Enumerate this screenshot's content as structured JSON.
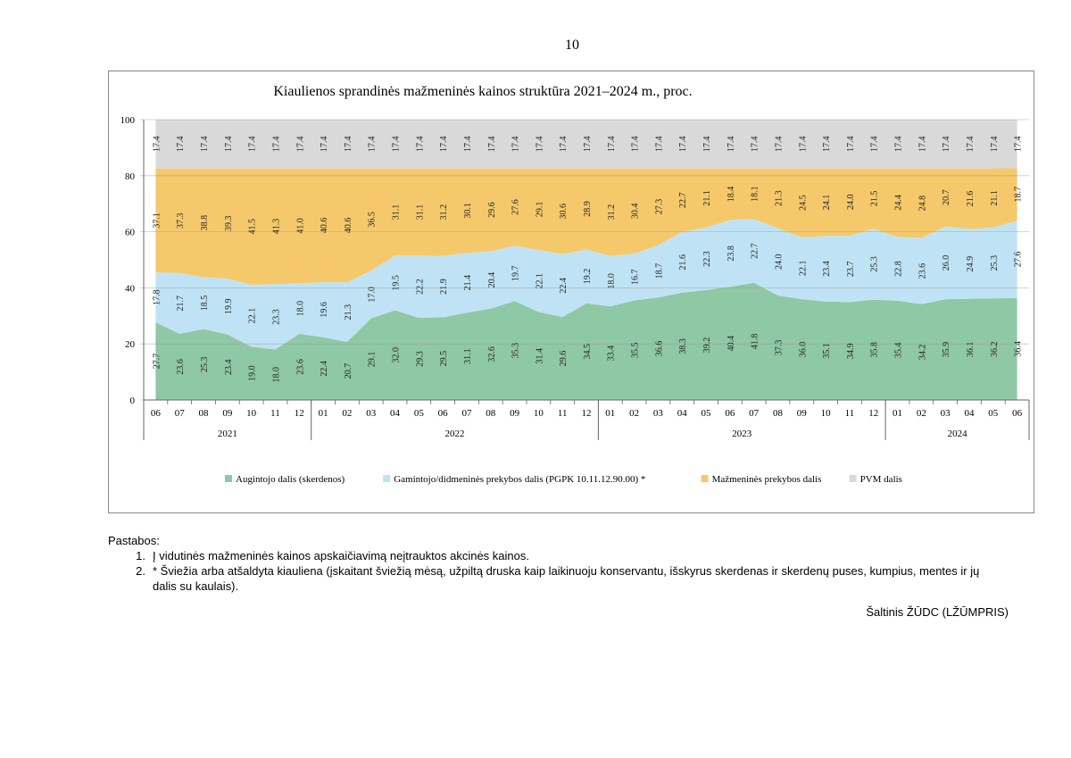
{
  "page_number": "10",
  "chart_data": {
    "type": "area",
    "stacked": true,
    "title": "Kiaulienos sprandinės mažmeninės  kainos struktūra 2021–2024 m., proc.",
    "ylim": [
      0,
      100
    ],
    "yticks": [
      "0",
      "20",
      "40",
      "60",
      "80",
      "100"
    ],
    "grid": true,
    "legend_position": "bottom",
    "categories": [
      "06",
      "07",
      "08",
      "09",
      "10",
      "11",
      "12",
      "01",
      "02",
      "03",
      "04",
      "05",
      "06",
      "07",
      "08",
      "09",
      "10",
      "11",
      "12",
      "01",
      "02",
      "03",
      "04",
      "05",
      "06",
      "07",
      "08",
      "09",
      "10",
      "11",
      "12",
      "01",
      "02",
      "03",
      "04",
      "05",
      "06"
    ],
    "years": [
      {
        "label": "2021",
        "start": 0,
        "end": 6
      },
      {
        "label": "2022",
        "start": 7,
        "end": 18
      },
      {
        "label": "2023",
        "start": 19,
        "end": 30
      },
      {
        "label": "2024",
        "start": 31,
        "end": 36
      }
    ],
    "series": [
      {
        "name": "Augintojo dalis (skerdenos)",
        "color": "#8fc8a4",
        "values": [
          27.7,
          23.6,
          25.3,
          23.4,
          19.0,
          18.0,
          23.6,
          22.4,
          20.7,
          29.1,
          32.0,
          29.3,
          29.5,
          31.1,
          32.6,
          35.3,
          31.4,
          29.6,
          34.5,
          33.4,
          35.5,
          36.6,
          38.3,
          39.2,
          40.4,
          41.8,
          37.3,
          36.0,
          35.1,
          34.9,
          35.8,
          35.4,
          34.2,
          35.9,
          36.1,
          36.2,
          36.4
        ]
      },
      {
        "name": "Gamintojo/didmeninės prekybos dalis (PGPK 10.11.12.90.00) *",
        "color": "#bfe3f5",
        "values": [
          17.8,
          21.7,
          18.5,
          19.9,
          22.1,
          23.3,
          18.0,
          19.6,
          21.3,
          17.0,
          19.5,
          22.2,
          21.9,
          21.4,
          20.4,
          19.7,
          22.1,
          22.4,
          19.2,
          18.0,
          16.7,
          18.7,
          21.6,
          22.3,
          23.8,
          22.7,
          24.0,
          22.1,
          23.4,
          23.7,
          25.3,
          22.8,
          23.6,
          26.0,
          24.9,
          25.3,
          27.6
        ]
      },
      {
        "name": "Mažmeninės prekybos dalis",
        "color": "#f5c96b",
        "values": [
          37.1,
          37.3,
          38.8,
          39.3,
          41.5,
          41.3,
          41.0,
          40.6,
          40.6,
          36.5,
          31.1,
          31.1,
          31.2,
          30.1,
          29.6,
          27.6,
          29.1,
          30.6,
          28.9,
          31.2,
          30.4,
          27.3,
          22.7,
          21.1,
          18.4,
          18.1,
          21.3,
          24.5,
          24.1,
          24.0,
          21.5,
          24.4,
          24.8,
          20.7,
          21.6,
          21.1,
          18.7
        ]
      },
      {
        "name": "PVM dalis",
        "color": "#d9d9d9",
        "values": [
          17.4,
          17.4,
          17.4,
          17.4,
          17.4,
          17.4,
          17.4,
          17.4,
          17.4,
          17.4,
          17.4,
          17.4,
          17.4,
          17.4,
          17.4,
          17.4,
          17.4,
          17.4,
          17.4,
          17.4,
          17.4,
          17.4,
          17.4,
          17.4,
          17.4,
          17.4,
          17.4,
          17.4,
          17.4,
          17.4,
          17.4,
          17.4,
          17.4,
          17.4,
          17.4,
          17.4,
          17.4
        ]
      }
    ]
  },
  "notes": {
    "heading": "Pastabos:",
    "items": [
      {
        "num": "1.",
        "text": "Į vidutinės mažmeninės kainos apskaičiavimą neįtrauktos akcinės kainos."
      },
      {
        "num": "2.",
        "text": "* Šviežia arba atšaldyta kiauliena (įskaitant šviežią mėsą, užpiltą druska kaip laikinuoju konservantu, išskyrus skerdenas ir skerdenų puses, kumpius, mentes ir jų dalis su kaulais)."
      }
    ]
  },
  "source": "Šaltinis ŽŪDC (LŽŪMPRIS)"
}
